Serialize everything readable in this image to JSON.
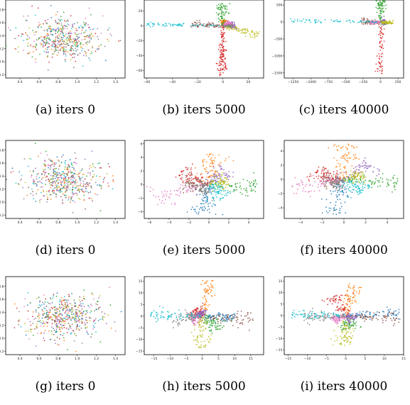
{
  "palette": [
    "#1f77b4",
    "#ff7f0e",
    "#2ca02c",
    "#d62728",
    "#9467bd",
    "#8c564b",
    "#e377c2",
    "#7f7f7f",
    "#bcbd22",
    "#17becf"
  ],
  "chart_data": [
    {
      "type": "scatter",
      "caption": "(a) iters 0",
      "pattern": "blob",
      "xlim": [
        0.25,
        1.5
      ],
      "ylim": [
        -0.25,
        0.95
      ],
      "xticks": [
        0.4,
        0.6,
        0.8,
        1.0,
        1.2,
        1.4
      ],
      "xtick_labels": [
        "0.4",
        "0.6",
        "0.8",
        "1.0",
        "1.2",
        "1.4"
      ],
      "yticks": [
        -0.2,
        0.0,
        0.2,
        0.4,
        0.6,
        0.8
      ],
      "ytick_labels": [
        "−0.2",
        "0.0",
        "0.2",
        "0.4",
        "0.6",
        "0.8"
      ],
      "grid": false,
      "legend": false
    },
    {
      "type": "scatter",
      "caption": "(b) iters 5000",
      "pattern": "arms_b",
      "xlim": [
        -62,
        32
      ],
      "ylim": [
        -70,
        35
      ],
      "xticks": [
        -60,
        -40,
        -20,
        0,
        20
      ],
      "xtick_labels": [
        "−60",
        "−40",
        "−20",
        "0",
        "20"
      ],
      "yticks": [
        -60,
        -40,
        -20,
        0,
        20
      ],
      "ytick_labels": [
        "−60",
        "−40",
        "−20",
        "0",
        "20"
      ],
      "grid": false,
      "legend": false
    },
    {
      "type": "scatter",
      "caption": "(c) iters 40000",
      "pattern": "arms_c",
      "xlim": [
        -1380,
        330
      ],
      "ylim": [
        -1650,
        650
      ],
      "xticks": [
        -1250,
        -1000,
        -750,
        -500,
        -250,
        0,
        250
      ],
      "xtick_labels": [
        "−1250",
        "−1000",
        "−750",
        "−500",
        "−250",
        "0",
        "250"
      ],
      "yticks": [
        -1500,
        -1000,
        -500,
        0,
        500
      ],
      "ytick_labels": [
        "−1500",
        "−1000",
        "−500",
        "0",
        "500"
      ],
      "grid": false,
      "legend": false
    },
    {
      "type": "scatter",
      "caption": "(d) iters 0",
      "pattern": "blob",
      "xlim": [
        0.25,
        1.5
      ],
      "ylim": [
        -0.25,
        0.95
      ],
      "xticks": [
        0.4,
        0.6,
        0.8,
        1.0,
        1.2,
        1.4
      ],
      "xtick_labels": [
        "0.4",
        "0.6",
        "0.8",
        "1.0",
        "1.2",
        "1.4"
      ],
      "yticks": [
        -0.2,
        0.0,
        0.2,
        0.4,
        0.6,
        0.8
      ],
      "ytick_labels": [
        "−0.2",
        "0.0",
        "0.2",
        "0.4",
        "0.6",
        "0.8"
      ],
      "grid": false,
      "legend": false
    },
    {
      "type": "scatter",
      "caption": "(e) iters 5000",
      "pattern": "star_e",
      "xlim": [
        -6.5,
        5.5
      ],
      "ylim": [
        -5,
        6.5
      ],
      "xticks": [
        -6,
        -4,
        -2,
        0,
        2,
        4
      ],
      "xtick_labels": [
        "−6",
        "−4",
        "−2",
        "0",
        "2",
        "4"
      ],
      "yticks": [
        -4,
        -2,
        0,
        2,
        4,
        6
      ],
      "ytick_labels": [
        "−4",
        "−2",
        "0",
        "2",
        "4",
        "6"
      ],
      "grid": false,
      "legend": false
    },
    {
      "type": "scatter",
      "caption": "(f) iters 40000",
      "pattern": "star_f",
      "xlim": [
        -5.5,
        5.5
      ],
      "ylim": [
        -5.5,
        5.5
      ],
      "xticks": [
        -4,
        -2,
        0,
        2,
        4
      ],
      "xtick_labels": [
        "−4",
        "−2",
        "0",
        "2",
        "4"
      ],
      "yticks": [
        -4,
        -2,
        0,
        2,
        4
      ],
      "ytick_labels": [
        "−4",
        "−2",
        "0",
        "2",
        "4"
      ],
      "grid": false,
      "legend": false
    },
    {
      "type": "scatter",
      "caption": "(g) iters 0",
      "pattern": "blob",
      "xlim": [
        0.25,
        1.5
      ],
      "ylim": [
        -0.25,
        0.95
      ],
      "xticks": [
        0.4,
        0.6,
        0.8,
        1.0,
        1.2,
        1.4
      ],
      "xtick_labels": [
        "0.4",
        "0.6",
        "0.8",
        "1.0",
        "1.2",
        "1.4"
      ],
      "yticks": [
        -0.2,
        0.0,
        0.2,
        0.4,
        0.6,
        0.8
      ],
      "ytick_labels": [
        "−0.2",
        "0.0",
        "0.2",
        "0.4",
        "0.6",
        "0.8"
      ],
      "grid": false,
      "legend": false
    },
    {
      "type": "scatter",
      "caption": "(h) iters 5000",
      "pattern": "star_h",
      "xlim": [
        -18,
        19
      ],
      "ylim": [
        -16.5,
        17
      ],
      "xticks": [
        -15,
        -10,
        -5,
        0,
        5,
        10,
        15
      ],
      "xtick_labels": [
        "−15",
        "−10",
        "−5",
        "0",
        "5",
        "10",
        "15"
      ],
      "yticks": [
        -15,
        -10,
        -5,
        0,
        5,
        10,
        15
      ],
      "ytick_labels": [
        "−15",
        "−10",
        "−5",
        "0",
        "5",
        "10",
        "15"
      ],
      "grid": false,
      "legend": false
    },
    {
      "type": "scatter",
      "caption": "(i) iters 40000",
      "pattern": "star_i",
      "xlim": [
        -16,
        15
      ],
      "ylim": [
        -17,
        17
      ],
      "xticks": [
        -15,
        -10,
        -5,
        0,
        5,
        10,
        15
      ],
      "xtick_labels": [
        "−15",
        "−10",
        "−5",
        "0",
        "5",
        "10",
        "15"
      ],
      "yticks": [
        -15,
        -10,
        -5,
        0,
        5,
        10,
        15
      ],
      "ytick_labels": [
        "−15",
        "−10",
        "−5",
        "0",
        "5",
        "10",
        "15"
      ],
      "grid": false,
      "legend": false
    }
  ]
}
